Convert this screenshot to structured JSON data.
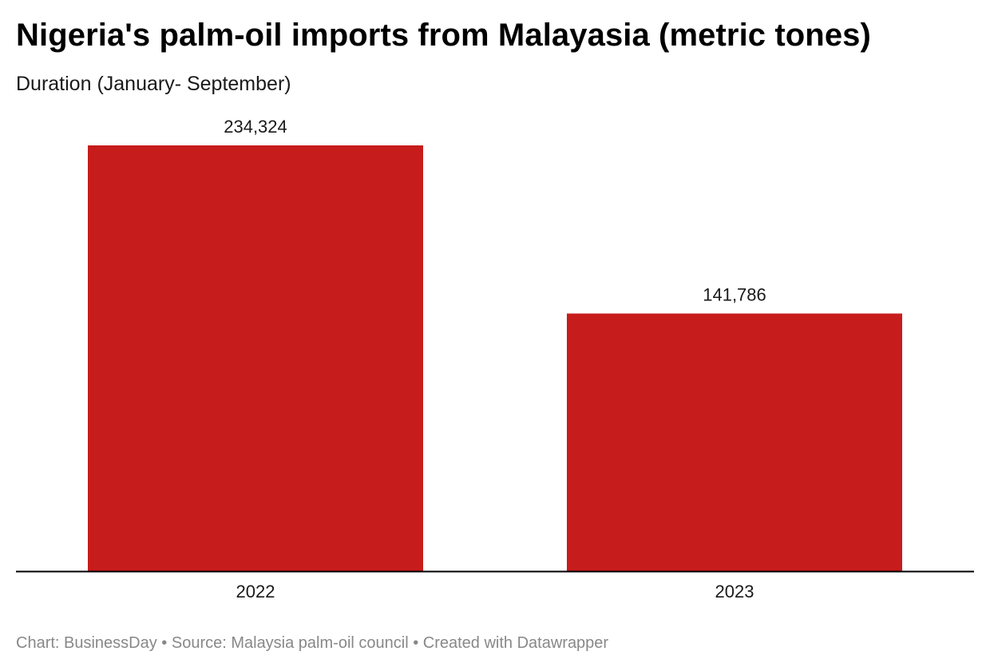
{
  "header": {
    "title": "Nigeria's palm-oil imports from Malayasia (metric tones)",
    "subtitle": "Duration (January- September)"
  },
  "footer": {
    "credit": "Chart: BusinessDay • Source: Malaysia palm-oil council • Created with Datawrapper"
  },
  "colors": {
    "bar": "#c71c1c",
    "axis": "#000000"
  },
  "chart_data": {
    "type": "bar",
    "categories": [
      "2022",
      "2023"
    ],
    "values": [
      234324,
      141786
    ],
    "value_labels": [
      "234,324",
      "141,786"
    ],
    "title": "Nigeria's palm-oil imports from Malayasia (metric tones)",
    "subtitle": "Duration (January- September)",
    "xlabel": "",
    "ylabel": "",
    "ylim": [
      0,
      234324
    ],
    "grid": false,
    "legend": "none"
  }
}
